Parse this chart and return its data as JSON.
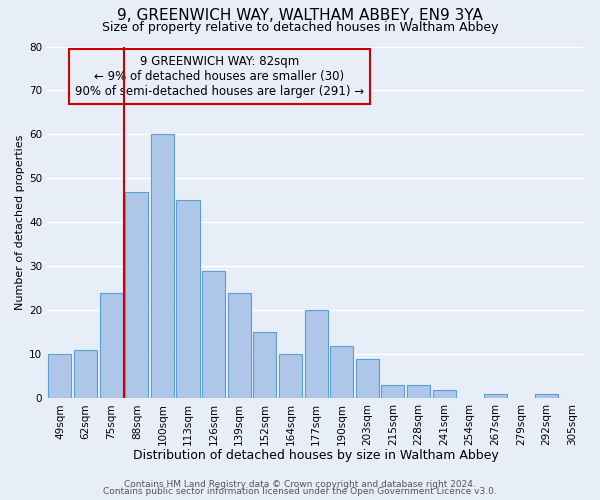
{
  "title": "9, GREENWICH WAY, WALTHAM ABBEY, EN9 3YA",
  "subtitle": "Size of property relative to detached houses in Waltham Abbey",
  "xlabel": "Distribution of detached houses by size in Waltham Abbey",
  "ylabel": "Number of detached properties",
  "bar_labels": [
    "49sqm",
    "62sqm",
    "75sqm",
    "88sqm",
    "100sqm",
    "113sqm",
    "126sqm",
    "139sqm",
    "152sqm",
    "164sqm",
    "177sqm",
    "190sqm",
    "203sqm",
    "215sqm",
    "228sqm",
    "241sqm",
    "254sqm",
    "267sqm",
    "279sqm",
    "292sqm",
    "305sqm"
  ],
  "bar_values": [
    10,
    11,
    24,
    47,
    60,
    45,
    29,
    24,
    15,
    10,
    20,
    12,
    9,
    3,
    3,
    2,
    0,
    1,
    0,
    1,
    0
  ],
  "bar_color": "#aec6e8",
  "bar_edge_color": "#5a9fd4",
  "background_color": "#e8eef7",
  "grid_color": "#ffffff",
  "vline_color": "#cc0000",
  "annotation_line1": "9 GREENWICH WAY: 82sqm",
  "annotation_line2": "← 9% of detached houses are smaller (30)",
  "annotation_line3": "90% of semi-detached houses are larger (291) →",
  "annotation_box_edge_color": "#cc0000",
  "ylim": [
    0,
    80
  ],
  "yticks": [
    0,
    10,
    20,
    30,
    40,
    50,
    60,
    70,
    80
  ],
  "footer_line1": "Contains HM Land Registry data © Crown copyright and database right 2024.",
  "footer_line2": "Contains public sector information licensed under the Open Government Licence v3.0.",
  "title_fontsize": 11,
  "subtitle_fontsize": 9,
  "xlabel_fontsize": 9,
  "ylabel_fontsize": 8,
  "tick_fontsize": 7.5,
  "annotation_fontsize": 8.5,
  "footer_fontsize": 6.5
}
